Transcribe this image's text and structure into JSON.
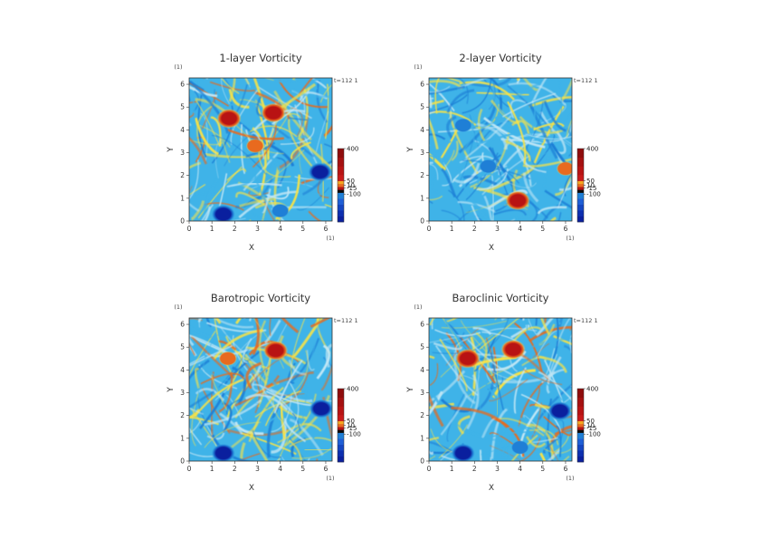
{
  "figure": {
    "time_label": "t=112 1",
    "unit_label": "(1)",
    "colors": {
      "background_field": "#3fb3e8",
      "positive_mid": "#f5e24a",
      "positive_strong": "#e86a1f",
      "positive_peak": "#b81313",
      "negative_mid": "#1f7fd6",
      "negative_peak": "#0a1f9e",
      "neutral": "#bfe6f5"
    }
  },
  "chart_data": [
    {
      "type": "heatmap",
      "title": "1-layer Vorticity",
      "xlabel": "X",
      "ylabel": "Y",
      "xlim": [
        0,
        6.28
      ],
      "ylim": [
        0,
        6.28
      ],
      "x_ticks": [
        "0",
        "1",
        "2",
        "3",
        "4",
        "5",
        "6"
      ],
      "y_ticks": [
        "0",
        "1",
        "2",
        "3",
        "4",
        "5",
        "6"
      ],
      "x_unit": "(1)",
      "y_unit": "(1)",
      "time_label": "t=112 1",
      "colorbar": {
        "range": [
          -150,
          400
        ],
        "ticks": [
          "400",
          "50",
          "10",
          "-15",
          "-100"
        ]
      },
      "features": [
        {
          "x": 3.7,
          "y": 4.75,
          "sign": "positive",
          "strength": "peak"
        },
        {
          "x": 1.75,
          "y": 4.5,
          "sign": "positive",
          "strength": "peak"
        },
        {
          "x": 5.75,
          "y": 2.15,
          "sign": "negative",
          "strength": "peak"
        },
        {
          "x": 1.5,
          "y": 0.3,
          "sign": "negative",
          "strength": "peak"
        },
        {
          "x": 4.0,
          "y": 0.45,
          "sign": "negative",
          "strength": "mid"
        },
        {
          "x": 2.9,
          "y": 3.3,
          "sign": "positive",
          "strength": "strong"
        }
      ]
    },
    {
      "type": "heatmap",
      "title": "2-layer Vorticity",
      "xlabel": "X",
      "ylabel": "Y",
      "xlim": [
        0,
        6.28
      ],
      "ylim": [
        0,
        6.28
      ],
      "x_ticks": [
        "0",
        "1",
        "2",
        "3",
        "4",
        "5",
        "6"
      ],
      "y_ticks": [
        "0",
        "1",
        "2",
        "3",
        "4",
        "5",
        "6"
      ],
      "x_unit": "(1)",
      "y_unit": "(1)",
      "time_label": "t=112 1",
      "colorbar": {
        "range": [
          -150,
          400
        ],
        "ticks": [
          "400",
          "50",
          "10",
          "-15",
          "-100"
        ]
      },
      "features": [
        {
          "x": 3.9,
          "y": 0.9,
          "sign": "positive",
          "strength": "peak"
        },
        {
          "x": 6.0,
          "y": 2.3,
          "sign": "positive",
          "strength": "strong"
        },
        {
          "x": 2.6,
          "y": 2.4,
          "sign": "negative",
          "strength": "mid"
        },
        {
          "x": 1.5,
          "y": 4.2,
          "sign": "negative",
          "strength": "mid"
        }
      ]
    },
    {
      "type": "heatmap",
      "title": "Barotropic Vorticity",
      "xlabel": "X",
      "ylabel": "Y",
      "xlim": [
        0,
        6.28
      ],
      "ylim": [
        0,
        6.28
      ],
      "x_ticks": [
        "0",
        "1",
        "2",
        "3",
        "4",
        "5",
        "6"
      ],
      "y_ticks": [
        "0",
        "1",
        "2",
        "3",
        "4",
        "5",
        "6"
      ],
      "x_unit": "(1)",
      "y_unit": "(1)",
      "time_label": "t=112 1",
      "colorbar": {
        "range": [
          -150,
          400
        ],
        "ticks": [
          "400",
          "50",
          "10",
          "-15",
          "-100"
        ]
      },
      "features": [
        {
          "x": 3.8,
          "y": 4.85,
          "sign": "positive",
          "strength": "peak"
        },
        {
          "x": 1.7,
          "y": 4.5,
          "sign": "positive",
          "strength": "strong"
        },
        {
          "x": 5.8,
          "y": 2.3,
          "sign": "negative",
          "strength": "peak"
        },
        {
          "x": 1.5,
          "y": 0.35,
          "sign": "negative",
          "strength": "peak"
        }
      ]
    },
    {
      "type": "heatmap",
      "title": "Baroclinic Vorticity",
      "xlabel": "X",
      "ylabel": "Y",
      "xlim": [
        0,
        6.28
      ],
      "ylim": [
        0,
        6.28
      ],
      "x_ticks": [
        "0",
        "1",
        "2",
        "3",
        "4",
        "5",
        "6"
      ],
      "y_ticks": [
        "0",
        "1",
        "2",
        "3",
        "4",
        "5",
        "6"
      ],
      "x_unit": "(1)",
      "y_unit": "(1)",
      "time_label": "t=112 1",
      "colorbar": {
        "range": [
          -150,
          400
        ],
        "ticks": [
          "400",
          "50",
          "10",
          "-15",
          "-100"
        ]
      },
      "features": [
        {
          "x": 3.7,
          "y": 4.9,
          "sign": "positive",
          "strength": "peak"
        },
        {
          "x": 1.7,
          "y": 4.5,
          "sign": "positive",
          "strength": "peak"
        },
        {
          "x": 5.75,
          "y": 2.2,
          "sign": "negative",
          "strength": "peak"
        },
        {
          "x": 1.5,
          "y": 0.35,
          "sign": "negative",
          "strength": "peak"
        },
        {
          "x": 4.0,
          "y": 0.6,
          "sign": "negative",
          "strength": "mid"
        }
      ]
    }
  ]
}
